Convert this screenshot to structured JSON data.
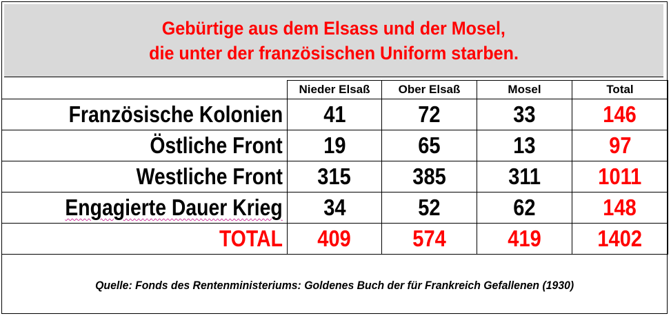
{
  "title": {
    "line1": "Gebürtige aus dem Elsass und der Mosel,",
    "line2": "die unter der französischen Uniform starben."
  },
  "table": {
    "columns": [
      "Nieder Elsaß",
      "Ober Elsaß",
      "Mosel",
      "Total"
    ],
    "rows": [
      {
        "label": "Französische Kolonien",
        "values": [
          "41",
          "72",
          "33",
          "146"
        ]
      },
      {
        "label": "Östliche Front",
        "values": [
          "19",
          "65",
          "13",
          "97"
        ]
      },
      {
        "label": "Westliche Front",
        "values": [
          "315",
          "385",
          "311",
          "1011"
        ]
      },
      {
        "label": "Engagierte Dauer Krieg",
        "values": [
          "34",
          "52",
          "62",
          "148"
        ]
      },
      {
        "label": "TOTAL",
        "values": [
          "409",
          "574",
          "419",
          "1402"
        ]
      }
    ]
  },
  "source": "Quelle: Fonds des Rentenministeriums: Goldenes Buch der für Frankreich Gefallenen (1930)",
  "colors": {
    "accent_red": "#ff0000",
    "title_background": "#d9d9d9"
  }
}
